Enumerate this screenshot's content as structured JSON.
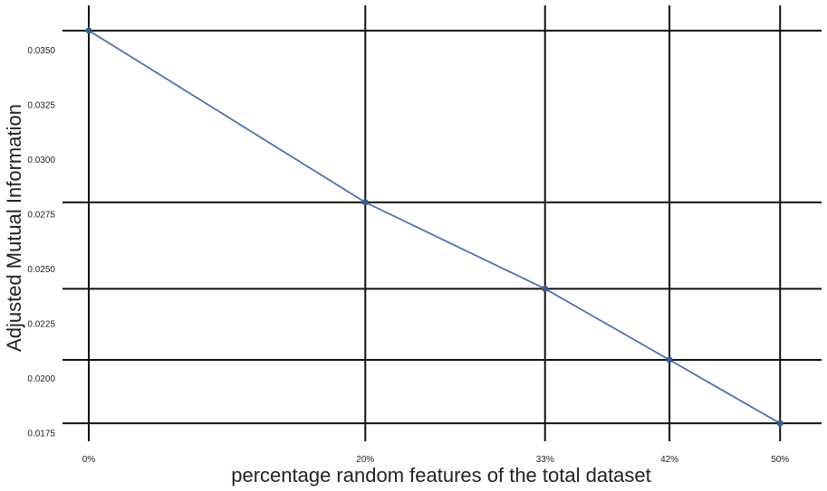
{
  "chart_data": {
    "type": "line",
    "title": "",
    "xlabel": "percentage random features of the total dataset",
    "ylabel": "Adjusted Mutual Information",
    "x": [
      "0%",
      "20%",
      "33%",
      "42%",
      "50%"
    ],
    "x_values": [
      0,
      20,
      33,
      42,
      50
    ],
    "series": [
      {
        "values": [
          0.0359,
          0.02805,
          0.0241,
          0.02085,
          0.01795
        ]
      }
    ],
    "yticks": [
      "0.0175",
      "0.0200",
      "0.0225",
      "0.0250",
      "0.0275",
      "0.0300",
      "0.0325",
      "0.0350"
    ],
    "ytick_values": [
      0.0175,
      0.02,
      0.0225,
      0.025,
      0.0275,
      0.03,
      0.0325,
      0.035
    ],
    "xlim": [
      -1.9,
      53
    ],
    "ylim": [
      0.01713,
      0.03705
    ],
    "grid": true,
    "colors": {
      "line": "#4c72b0",
      "marker": "#3a5a8c",
      "grid": "#111111"
    }
  }
}
